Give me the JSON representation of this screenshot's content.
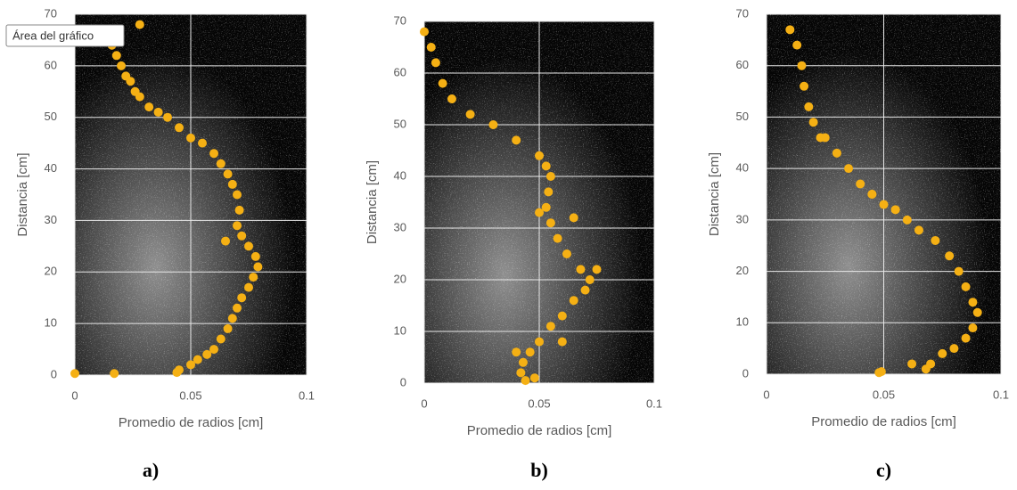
{
  "chart_data": [
    {
      "type": "scatter",
      "caption": "a)",
      "annotation": "Área del gráfico",
      "xlabel": "Promedio de radios [cm]",
      "ylabel": "Distancia [cm]",
      "color": "#f5b014",
      "grid": true,
      "xlim": [
        0,
        0.1
      ],
      "ylim": [
        0,
        70
      ],
      "xticks": [
        0,
        0.05,
        0.1
      ],
      "yticks": [
        0,
        10,
        20,
        30,
        40,
        50,
        60,
        70
      ],
      "x": [
        0.013,
        0.016,
        0.018,
        0.02,
        0.022,
        0.024,
        0.026,
        0.028,
        0.032,
        0.036,
        0.04,
        0.045,
        0.05,
        0.055,
        0.06,
        0.063,
        0.066,
        0.068,
        0.07,
        0.071,
        0.07,
        0.072,
        0.075,
        0.078,
        0.079,
        0.077,
        0.075,
        0.072,
        0.07,
        0.068,
        0.066,
        0.063,
        0.06,
        0.057,
        0.053,
        0.05,
        0.045,
        0,
        0.017,
        0.028,
        0.044,
        0.065
      ],
      "values": [
        67,
        64,
        62,
        60,
        58,
        57,
        55,
        54,
        52,
        51,
        50,
        48,
        46,
        45,
        43,
        41,
        39,
        37,
        35,
        32,
        29,
        27,
        25,
        23,
        21,
        19,
        17,
        15,
        13,
        11,
        9,
        7,
        5,
        4,
        3,
        2,
        1,
        0.3,
        0.3,
        68,
        0.5,
        26
      ]
    },
    {
      "type": "scatter",
      "caption": "b)",
      "xlabel": "Promedio de radios [cm]",
      "ylabel": "Distancia [cm]",
      "color": "#f5b014",
      "grid": true,
      "xlim": [
        0,
        0.1
      ],
      "ylim": [
        0,
        70
      ],
      "xticks": [
        0,
        0.05,
        0.1
      ],
      "yticks": [
        0,
        10,
        20,
        30,
        40,
        50,
        60,
        70
      ],
      "x": [
        0,
        0.003,
        0.005,
        0.008,
        0.012,
        0.02,
        0.03,
        0.04,
        0.05,
        0.053,
        0.055,
        0.054,
        0.053,
        0.055,
        0.058,
        0.062,
        0.068,
        0.072,
        0.07,
        0.065,
        0.06,
        0.055,
        0.05,
        0.046,
        0.043,
        0.042,
        0.044,
        0.048,
        0.065,
        0.06,
        0.075,
        0.04,
        0.05
      ],
      "values": [
        68,
        65,
        62,
        58,
        55,
        52,
        50,
        47,
        44,
        42,
        40,
        37,
        34,
        31,
        28,
        25,
        22,
        20,
        18,
        16,
        13,
        11,
        8,
        6,
        4,
        2,
        0.5,
        1,
        32,
        8,
        22,
        6,
        33
      ]
    },
    {
      "type": "scatter",
      "caption": "c)",
      "xlabel": "Promedio de radios [cm]",
      "ylabel": "Distancia [cm]",
      "color": "#f5b014",
      "grid": true,
      "xlim": [
        0,
        0.1
      ],
      "ylim": [
        0,
        70
      ],
      "xticks": [
        0,
        0.05,
        0.1
      ],
      "yticks": [
        0,
        10,
        20,
        30,
        40,
        50,
        60,
        70
      ],
      "x": [
        0.01,
        0.013,
        0.015,
        0.016,
        0.018,
        0.02,
        0.025,
        0.03,
        0.035,
        0.04,
        0.045,
        0.05,
        0.055,
        0.06,
        0.065,
        0.072,
        0.078,
        0.082,
        0.085,
        0.088,
        0.09,
        0.088,
        0.085,
        0.08,
        0.075,
        0.07,
        0.068,
        0.062,
        0.048,
        0.049,
        0.023,
        0.045
      ],
      "values": [
        67,
        64,
        60,
        56,
        52,
        49,
        46,
        43,
        40,
        37,
        35,
        33,
        32,
        30,
        28,
        26,
        23,
        20,
        17,
        14,
        12,
        9,
        7,
        5,
        4,
        2,
        1,
        2,
        0.3,
        0.5,
        46,
        35
      ]
    }
  ]
}
